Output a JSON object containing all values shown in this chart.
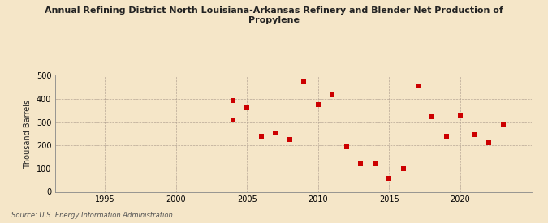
{
  "title_line1": "Annual Refining District North Louisiana-Arkansas Refinery and Blender Net Production of",
  "title_line2": "Propylene",
  "ylabel": "Thousand Barrels",
  "source": "Source: U.S. Energy Information Administration",
  "background_color": "#f5e6c8",
  "plot_bg_color": "#f5e6c8",
  "marker_color": "#cc0000",
  "marker": "s",
  "marker_size": 4,
  "xlim": [
    1991.5,
    2025
  ],
  "ylim": [
    0,
    500
  ],
  "xticks": [
    1995,
    2000,
    2005,
    2010,
    2015,
    2020
  ],
  "yticks": [
    0,
    100,
    200,
    300,
    400,
    500
  ],
  "years": [
    2004,
    2004,
    2005,
    2006,
    2007,
    2008,
    2009,
    2010,
    2011,
    2012,
    2013,
    2014,
    2015,
    2016,
    2017,
    2018,
    2019,
    2020,
    2021,
    2022,
    2023
  ],
  "values": [
    310,
    395,
    362,
    238,
    255,
    225,
    475,
    375,
    418,
    193,
    122,
    122,
    57,
    100,
    455,
    325,
    240,
    330,
    247,
    212,
    290
  ]
}
